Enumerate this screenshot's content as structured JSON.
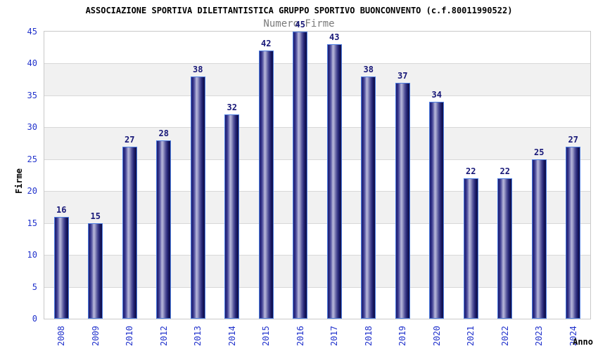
{
  "chart_data": {
    "type": "bar",
    "title": "ASSOCIAZIONE SPORTIVA DILETTANTISTICA GRUPPO SPORTIVO BUONCONVENTO (c.f.80011990522)",
    "subtitle": "Numero Firme",
    "xlabel": "Anno",
    "ylabel": "Firme",
    "categories": [
      "2008",
      "2009",
      "2010",
      "2012",
      "2013",
      "2014",
      "2015",
      "2016",
      "2017",
      "2018",
      "2019",
      "2020",
      "2021",
      "2022",
      "2023",
      "2024"
    ],
    "values": [
      16,
      15,
      27,
      28,
      38,
      32,
      42,
      45,
      43,
      38,
      37,
      34,
      22,
      22,
      25,
      27
    ],
    "ylim": [
      0,
      45
    ],
    "ytick_step": 5,
    "yticks": [
      0,
      5,
      10,
      15,
      20,
      25,
      30,
      35,
      40,
      45
    ],
    "grid": true,
    "alternating_bands": true,
    "legend_position": "none",
    "colors": {
      "background": "#ffffff",
      "title": "#000000",
      "subtitle": "#7a7a7a",
      "axis_tick_label": "#2233cc",
      "value_label": "#181878",
      "bar_border": "#4d7de0",
      "bar_dark": "#10104e",
      "bar_highlight": "#b7b7da",
      "grid_line": "#d8d8d8",
      "band_fill": "#f1f1f1",
      "plot_border": "#c9c9c9"
    }
  }
}
